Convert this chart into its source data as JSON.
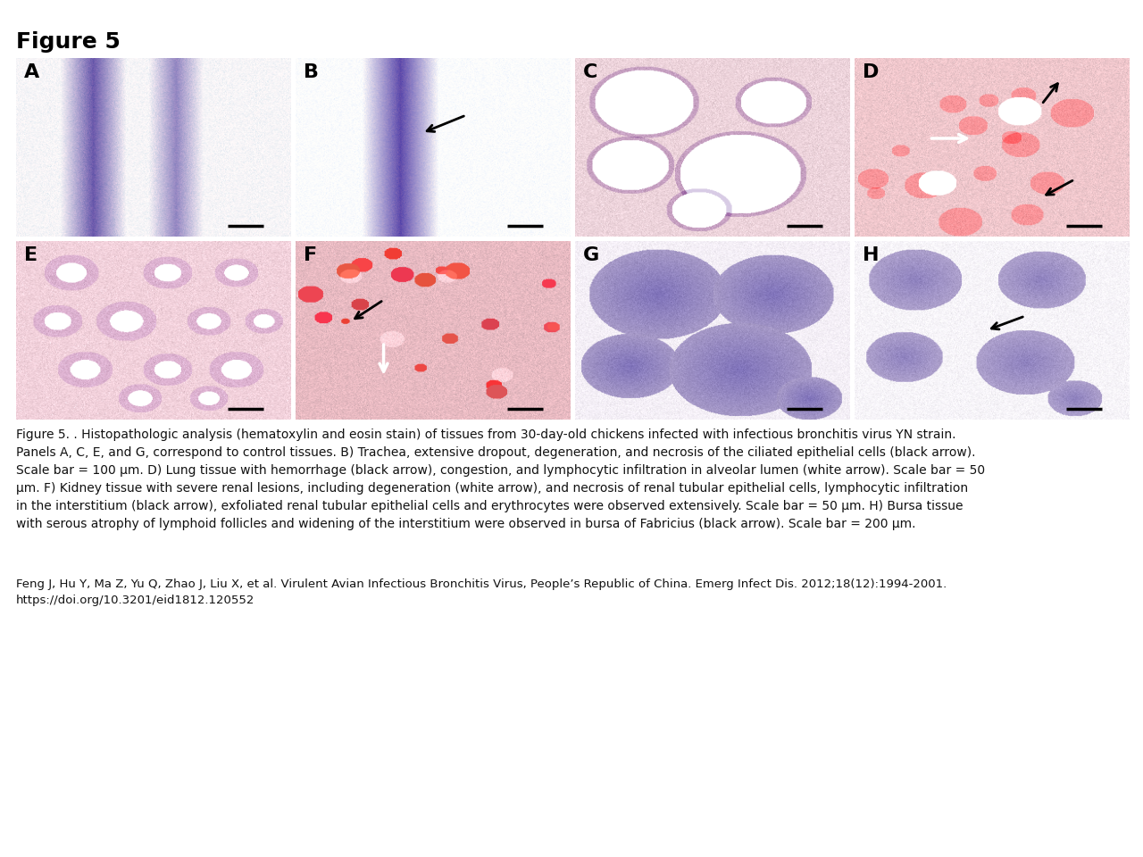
{
  "title": "Figure 5",
  "caption_main": "Figure 5. . Histopathologic analysis (hematoxylin and eosin stain) of tissues from 30-day-old chickens infected with infectious bronchitis virus YN strain.\nPanels A, C, E, and G, correspond to control tissues. B) Trachea, extensive dropout, degeneration, and necrosis of the ciliated epithelial cells (black arrow).\nScale bar = 100 μm. D) Lung tissue with hemorrhage (black arrow), congestion, and lymphocytic infiltration in alveolar lumen (white arrow). Scale bar = 50\nμm. F) Kidney tissue with severe renal lesions, including degeneration (white arrow), and necrosis of renal tubular epithelial cells, lymphocytic infiltration\nin the interstitium (black arrow), exfoliated renal tubular epithelial cells and erythrocytes were observed extensively. Scale bar = 50 μm. H) Bursa tissue\nwith serous atrophy of lymphoid follicles and widening of the interstitium were observed in bursa of Fabricius (black arrow). Scale bar = 200 μm.",
  "caption_ref": "Feng J, Hu Y, Ma Z, Yu Q, Zhao J, Liu X, et al. Virulent Avian Infectious Bronchitis Virus, People’s Republic of China. Emerg Infect Dis. 2012;18(12):1994-2001.\nhttps://doi.org/10.3201/eid1812.120552",
  "panel_labels": [
    "A",
    "B",
    "C",
    "D",
    "E",
    "F",
    "G",
    "H"
  ],
  "bg_color": "#ffffff",
  "title_fontsize": 18,
  "label_fontsize": 16,
  "caption_fontsize": 10,
  "ref_fontsize": 9.5
}
